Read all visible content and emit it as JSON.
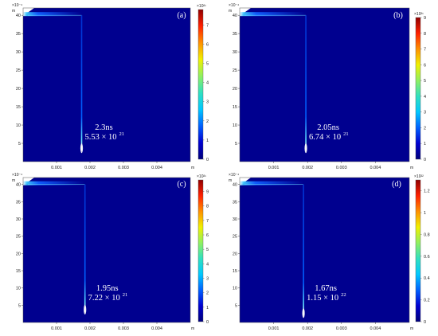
{
  "colors": {
    "background": "#00008f",
    "colormap": [
      "#00007a",
      "#0000d0",
      "#0060ff",
      "#00c8ff",
      "#30e0c0",
      "#90f060",
      "#f0f000",
      "#ff9000",
      "#ff2000",
      "#900000"
    ]
  },
  "chart_data": [
    {
      "type": "heatmap",
      "panel_label": "(a)",
      "time_label": "2.3ns",
      "peak_mantissa": "5.53 × 10",
      "peak_exponent": "21",
      "x_exponent_label": "",
      "x_unit": "m",
      "y_exponent_label": "×10⁻⁴",
      "y_unit": "m",
      "xlim": [
        0,
        0.005
      ],
      "ylim": [
        0,
        0.0042
      ],
      "x_ticks": [
        "0.001",
        "0.002",
        "0.003",
        "0.004"
      ],
      "y_ticks": [
        "5",
        "10",
        "15",
        "20",
        "25",
        "30",
        "35",
        "40"
      ],
      "colorbar_exponent": "×10²¹",
      "colorbar_max": 7.8,
      "colorbar_ticks": [
        "0",
        "1",
        "2",
        "3",
        "4",
        "5",
        "6",
        "7"
      ],
      "streamer_x": 0.00175,
      "streamer_tip_y": 0.0003
    },
    {
      "type": "heatmap",
      "panel_label": "(b)",
      "time_label": "2.05ns",
      "peak_mantissa": "6.74 × 10",
      "peak_exponent": "21",
      "x_exponent_label": "",
      "x_unit": "m",
      "y_exponent_label": "×10⁻⁴",
      "y_unit": "m",
      "xlim": [
        0,
        0.005
      ],
      "ylim": [
        0,
        0.0042
      ],
      "x_ticks": [
        "0.001",
        "0.002",
        "0.003",
        "0.004"
      ],
      "y_ticks": [
        "5",
        "10",
        "15",
        "20",
        "25",
        "30",
        "35",
        "40"
      ],
      "colorbar_exponent": "×10²¹",
      "colorbar_max": 9.0,
      "colorbar_ticks": [
        "0",
        "1",
        "2",
        "3",
        "4",
        "5",
        "6",
        "7",
        "8",
        "9"
      ],
      "streamer_x": 0.00195,
      "streamer_tip_y": 0.0003
    },
    {
      "type": "heatmap",
      "panel_label": "(c)",
      "time_label": "1.95ns",
      "peak_mantissa": "7.22 × 10",
      "peak_exponent": "21",
      "x_exponent_label": "",
      "x_unit": "m",
      "y_exponent_label": "×10⁻⁴",
      "y_unit": "m",
      "xlim": [
        0,
        0.005
      ],
      "ylim": [
        0,
        0.0042
      ],
      "x_ticks": [
        "0.001",
        "0.002",
        "0.003",
        "0.004"
      ],
      "y_ticks": [
        "5",
        "10",
        "15",
        "20",
        "25",
        "30",
        "35",
        "40"
      ],
      "colorbar_exponent": "×10²¹",
      "colorbar_max": 9.8,
      "colorbar_ticks": [
        "0",
        "1",
        "2",
        "3",
        "4",
        "5",
        "6",
        "7",
        "8",
        "9"
      ],
      "streamer_x": 0.00185,
      "streamer_tip_y": 0.0003
    },
    {
      "type": "heatmap",
      "panel_label": "(d)",
      "time_label": "1.67ns",
      "peak_mantissa": "1.15 × 10",
      "peak_exponent": "22",
      "x_exponent_label": "",
      "x_unit": "m",
      "y_exponent_label": "×10⁻⁴",
      "y_unit": "m",
      "xlim": [
        0,
        0.005
      ],
      "ylim": [
        0,
        0.0042
      ],
      "x_ticks": [
        "0.001",
        "0.002",
        "0.003",
        "0.004"
      ],
      "y_ticks": [
        "5",
        "10",
        "15",
        "20",
        "25",
        "30",
        "35",
        "40"
      ],
      "colorbar_exponent": "×10²²",
      "colorbar_max": 1.3,
      "colorbar_ticks": [
        "0",
        "0.2",
        "0.4",
        "0.6",
        "0.8",
        "1",
        "1.2"
      ],
      "streamer_x": 0.00188,
      "streamer_tip_y": 0.0002
    }
  ]
}
